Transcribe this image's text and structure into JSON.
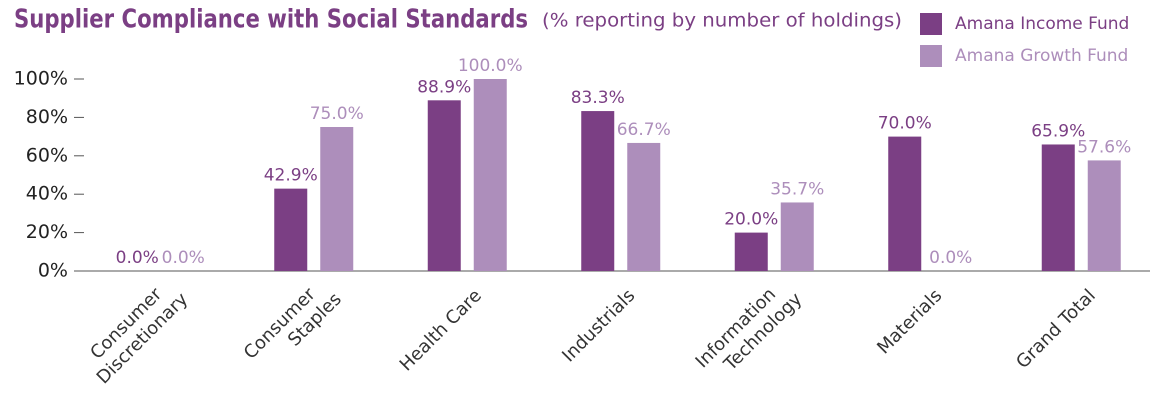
{
  "chart_data": {
    "type": "bar",
    "title": "Supplier Compliance with Social Standards",
    "subtitle": "(% reporting by number of holdings)",
    "categories": [
      "Consumer\nDiscretionary",
      "Consumer\nStaples",
      "Health Care",
      "Industrials",
      "Information\nTechnology",
      "Materials",
      "Grand Total"
    ],
    "series": [
      {
        "name": "Amana Income Fund",
        "color": "#7b3f84",
        "values": [
          0,
          42.9,
          88.9,
          83.3,
          20,
          70,
          65.9
        ],
        "value_labels": [
          "0.0%",
          "42.9%",
          "88.9%",
          "83.3%",
          "20.0%",
          "70.0%",
          "65.9%"
        ]
      },
      {
        "name": "Amana Growth Fund",
        "color": "#ad8ebb",
        "values": [
          0,
          75,
          100,
          66.7,
          35.7,
          0,
          57.6
        ],
        "value_labels": [
          "0.0%",
          "75.0%",
          "100.0%",
          "66.7%",
          "35.7%",
          "0.0%",
          "57.6%"
        ]
      }
    ],
    "ylim": [
      0,
      100
    ],
    "yticks": [
      {
        "value": 0,
        "label": "0%"
      },
      {
        "value": 20,
        "label": "20%"
      },
      {
        "value": 40,
        "label": "40%"
      },
      {
        "value": 60,
        "label": "60%"
      },
      {
        "value": 80,
        "label": "80%"
      },
      {
        "value": 100,
        "label": "100%"
      }
    ],
    "legend": "top-right"
  }
}
